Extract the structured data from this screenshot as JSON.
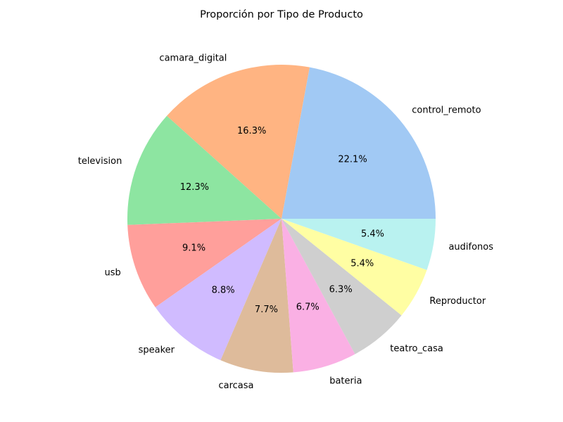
{
  "chart_data": {
    "type": "pie",
    "title": "Proporción por Tipo de Producto",
    "start_angle_deg": 0,
    "direction": "counterclockwise",
    "slices": [
      {
        "label": "control_remoto",
        "value": 22.1,
        "pct_label": "22.1%",
        "color": "#a1c9f4"
      },
      {
        "label": "camara_digital",
        "value": 16.3,
        "pct_label": "16.3%",
        "color": "#ffb482"
      },
      {
        "label": "television",
        "value": 12.3,
        "pct_label": "12.3%",
        "color": "#8de5a1"
      },
      {
        "label": "usb",
        "value": 9.1,
        "pct_label": "9.1%",
        "color": "#ff9f9b"
      },
      {
        "label": "speaker",
        "value": 8.8,
        "pct_label": "8.8%",
        "color": "#d0bbff"
      },
      {
        "label": "carcasa",
        "value": 7.7,
        "pct_label": "7.7%",
        "color": "#debb9b"
      },
      {
        "label": "bateria",
        "value": 6.7,
        "pct_label": "6.7%",
        "color": "#fab0e4"
      },
      {
        "label": "teatro_casa",
        "value": 6.3,
        "pct_label": "6.3%",
        "color": "#cfcfcf"
      },
      {
        "label": "Reproductor",
        "value": 5.4,
        "pct_label": "5.4%",
        "color": "#fffea3"
      },
      {
        "label": "audifonos",
        "value": 5.4,
        "pct_label": "5.4%",
        "color": "#b9f2f0"
      }
    ]
  }
}
